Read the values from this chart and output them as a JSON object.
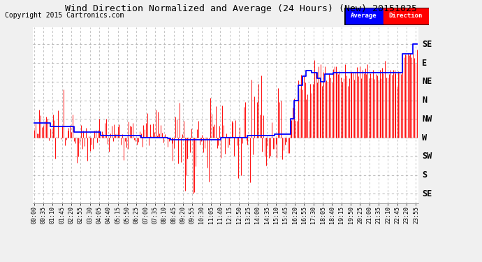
{
  "title": "Wind Direction Normalized and Average (24 Hours) (New) 20151025",
  "copyright": "Copyright 2015 Cartronics.com",
  "background_color": "#f0f0f0",
  "plot_bg_color": "#ffffff",
  "grid_color": "#aaaaaa",
  "ytick_labels": [
    "SE",
    "E",
    "NE",
    "N",
    "NW",
    "W",
    "SW",
    "S",
    "SE"
  ],
  "ytick_values": [
    8,
    7,
    6,
    5,
    4,
    3,
    2,
    1,
    0
  ],
  "ylim": [
    -0.5,
    8.9
  ],
  "ydir": "normal",
  "legend_avg_color": "#0000ff",
  "legend_dir_color": "#ff0000",
  "legend_avg_label": "Average",
  "legend_dir_label": "Direction",
  "xtick_step_minutes": 35,
  "n_points": 288
}
